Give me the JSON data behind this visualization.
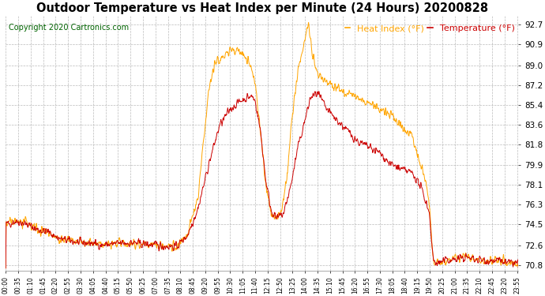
{
  "title": "Outdoor Temperature vs Heat Index per Minute (24 Hours) 20200828",
  "copyright": "Copyright 2020 Cartronics.com",
  "legend_heat": "Heat Index (°F)",
  "legend_temp": "Temperature (°F)",
  "color_heat": "#FFA500",
  "color_temp": "#CC0000",
  "color_copyright": "#006400",
  "background_color": "#FFFFFF",
  "grid_color": "#AAAAAA",
  "yticks": [
    70.8,
    72.6,
    74.5,
    76.3,
    78.1,
    79.9,
    81.8,
    83.6,
    85.4,
    87.2,
    89.0,
    90.9,
    92.7
  ],
  "ymin": 70.3,
  "ymax": 93.5,
  "title_fontsize": 10.5,
  "copyright_fontsize": 7,
  "legend_fontsize": 8,
  "ytick_fontsize": 7.5,
  "xtick_fontsize": 5.5
}
